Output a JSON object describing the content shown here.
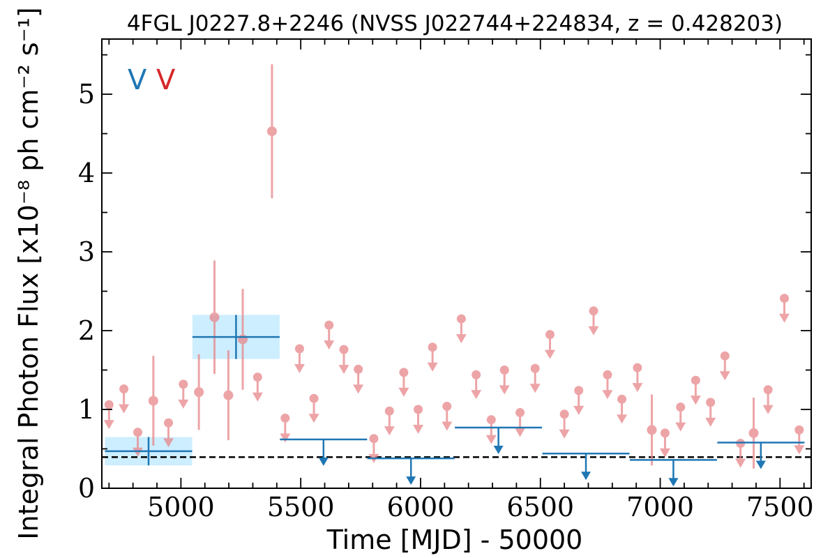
{
  "chart_data": {
    "type": "scatter",
    "title": "4FGL J0227.8+2246 (NVSS J022744+224834, z = 0.428203)",
    "xlabel": "Time [MJD] - 50000",
    "ylabel": "Integral Photon Flux [x10⁻⁸ ph cm⁻² s⁻¹]",
    "xlim": [
      4670,
      7630
    ],
    "ylim": [
      0,
      5.7
    ],
    "xticks": [
      "5000",
      "5500",
      "6000",
      "6500",
      "7000",
      "7500"
    ],
    "yticks": [
      "0",
      "1",
      "2",
      "3",
      "4",
      "5"
    ],
    "markers": [
      {
        "text": "V",
        "color": "#1f77b4"
      },
      {
        "text": "V",
        "color": "#d62728"
      }
    ],
    "colors": {
      "short": "#e8868a",
      "long": "#1f77b4",
      "band": "#cdeeff",
      "baseline": "#000000"
    },
    "baseline": 0.395,
    "series": [
      {
        "name": "",
        "kind": "short-bin-upper-limits",
        "x": [
          4700,
          4762,
          4820,
          4948,
          5010,
          5320,
          5435,
          5495,
          5555,
          5618,
          5680,
          5740,
          5805,
          5870,
          5930,
          5990,
          6050,
          6110,
          6170,
          6232,
          6295,
          6350,
          6415,
          6478,
          6540,
          6600,
          6660,
          6722,
          6780,
          6840,
          6905,
          7020,
          7085,
          7148,
          7210,
          7270,
          7335,
          7450,
          7518,
          7580
        ],
        "y": [
          1.06,
          1.26,
          0.71,
          0.83,
          1.32,
          1.41,
          0.89,
          1.77,
          1.14,
          2.07,
          1.76,
          1.51,
          0.63,
          0.98,
          1.47,
          1.0,
          1.79,
          1.04,
          2.15,
          1.44,
          0.87,
          1.5,
          0.96,
          1.52,
          1.95,
          0.94,
          1.24,
          2.25,
          1.44,
          1.13,
          1.53,
          0.7,
          1.03,
          1.37,
          1.09,
          1.68,
          0.57,
          1.25,
          2.41,
          0.74
        ]
      },
      {
        "name": "",
        "kind": "short-bin-detections",
        "x": [
          4885,
          5075,
          5140,
          5198,
          5258,
          5380,
          6965,
          7390
        ],
        "y": [
          1.11,
          1.22,
          2.17,
          1.18,
          1.89,
          4.53,
          0.74,
          0.7
        ],
        "yerr": [
          0.57,
          0.48,
          0.72,
          0.57,
          0.64,
          0.85,
          0.45,
          0.45
        ]
      },
      {
        "name": "",
        "kind": "long-bin-detections",
        "x": [
          4865,
          5230
        ],
        "xerr": [
          182,
          182
        ],
        "y": [
          0.47,
          1.92
        ],
        "yerr": [
          0.18,
          0.28
        ]
      },
      {
        "name": "",
        "kind": "long-bin-upper-limits",
        "x": [
          5595,
          5960,
          6325,
          6690,
          7055,
          7420
        ],
        "xerr": [
          182,
          182,
          182,
          182,
          182,
          182
        ],
        "y": [
          0.62,
          0.38,
          0.77,
          0.44,
          0.36,
          0.58
        ]
      }
    ]
  }
}
